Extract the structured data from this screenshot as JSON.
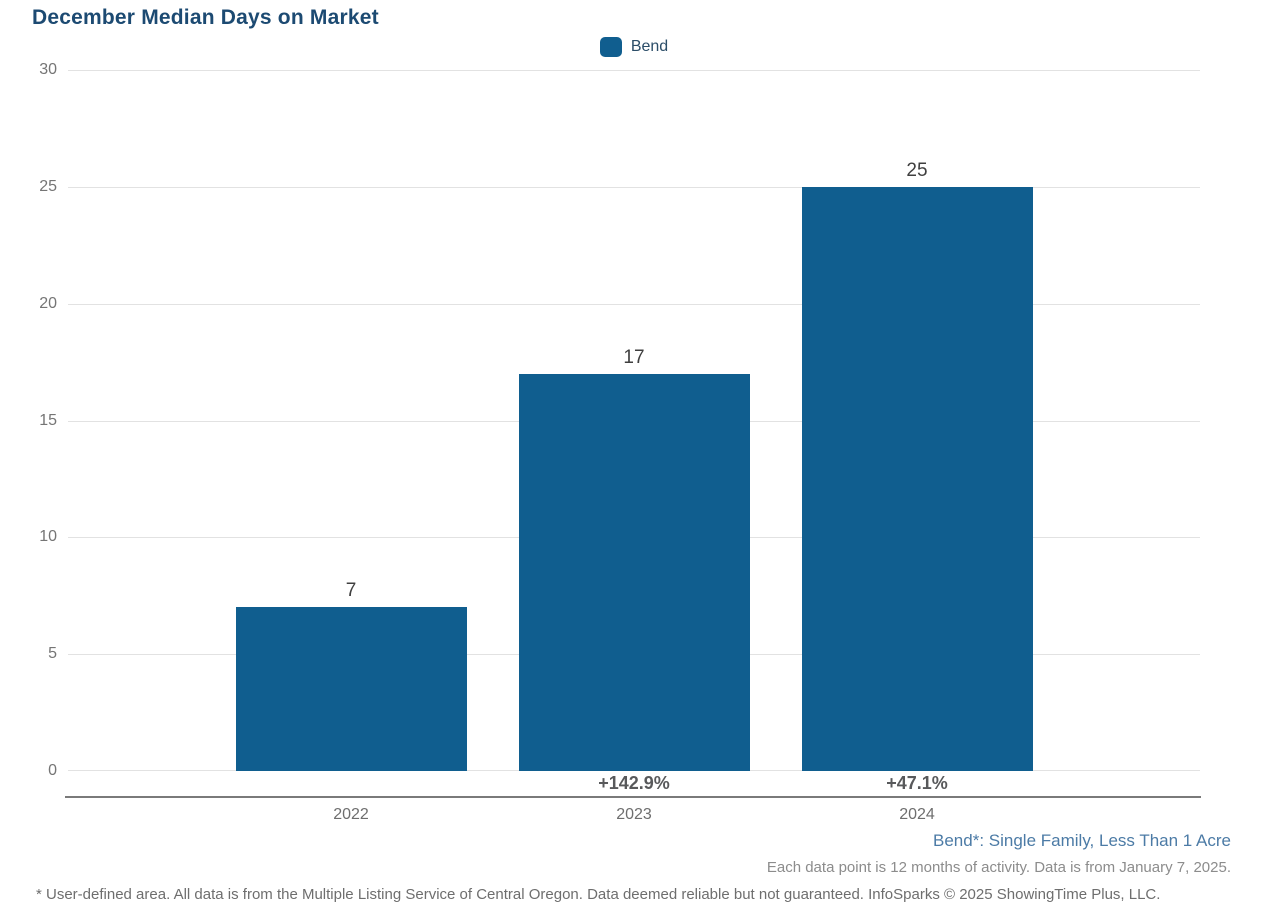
{
  "title": "December Median Days on Market",
  "legend": {
    "items": [
      {
        "label": "Bend",
        "swatch_color": "#105e8f"
      }
    ]
  },
  "chart_data": {
    "type": "bar",
    "title": "December Median Days on Market",
    "categories": [
      "2022",
      "2023",
      "2024"
    ],
    "series": [
      {
        "name": "Bend",
        "values": [
          7,
          17,
          25
        ]
      }
    ],
    "value_labels": [
      "7",
      "17",
      "25"
    ],
    "pct_change_labels": [
      "",
      "+142.9%",
      "+47.1%"
    ],
    "xlabel": "",
    "ylabel": "",
    "ylim": [
      0,
      30
    ],
    "yticks": [
      0,
      5,
      10,
      15,
      20,
      25,
      30
    ],
    "grid": true,
    "legend_position": "top-center",
    "bar_color": "#105e8f"
  },
  "footnotes": {
    "area_note": "Bend*: Single Family, Less Than 1 Acre",
    "data_note": "Each data point is 12 months of activity. Data is from January 7, 2025.",
    "disclaimer": "* User-defined area. All data is from the Multiple Listing Service of Central Oregon. Data deemed reliable but not guaranteed. InfoSparks © 2025 ShowingTime Plus, LLC."
  },
  "colors": {
    "title": "#1c4a72",
    "bar": "#105e8f",
    "gridline": "#e2e2e2",
    "axis_line": "#7a7a7a",
    "tick_text": "#757575",
    "value_label": "#3f3f3f",
    "pct_label": "#58595b",
    "area_note": "#4c7ba6",
    "data_note": "#8c8c8c",
    "disclaimer": "#6e6e6e"
  }
}
